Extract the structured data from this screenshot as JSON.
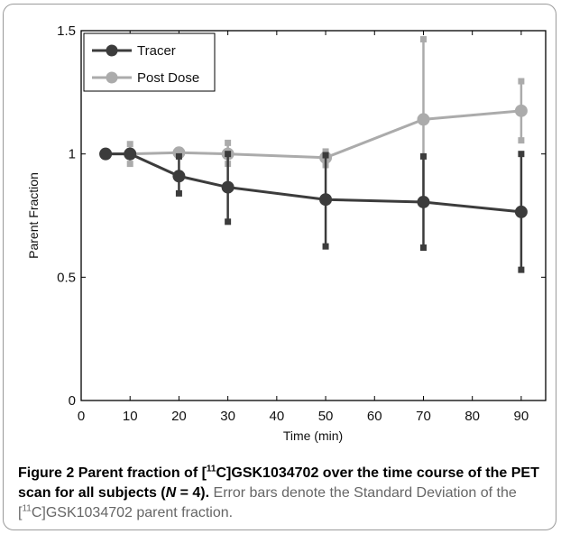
{
  "chart_data": {
    "type": "line",
    "xlabel": "Time (min)",
    "ylabel": "Parent Fraction",
    "xlim": [
      0,
      95
    ],
    "ylim": [
      0,
      1.5
    ],
    "xticks": [
      "0",
      "10",
      "20",
      "30",
      "40",
      "50",
      "60",
      "70",
      "80",
      "90"
    ],
    "yticks": [
      "0",
      "0.5",
      "1",
      "1.5"
    ],
    "legend_position": "top-left",
    "series": [
      {
        "name": "Tracer",
        "color": "#3c3c3c",
        "x": [
          5,
          10,
          20,
          30,
          50,
          70,
          90
        ],
        "y": [
          1.0,
          1.0,
          0.91,
          0.865,
          0.815,
          0.805,
          0.765
        ],
        "err_low": [
          1.0,
          0.99,
          0.84,
          0.725,
          0.625,
          0.62,
          0.53
        ],
        "err_high": [
          1.0,
          1.01,
          0.99,
          1.0,
          0.995,
          0.99,
          1.0
        ]
      },
      {
        "name": "Post Dose",
        "color": "#ababab",
        "x": [
          5,
          10,
          20,
          30,
          50,
          70,
          90
        ],
        "y": [
          1.0,
          1.0,
          1.005,
          1.0,
          0.985,
          1.14,
          1.175
        ],
        "err_low": [
          1.0,
          0.96,
          1.0,
          0.96,
          0.955,
          0.815,
          1.055
        ],
        "err_high": [
          1.0,
          1.04,
          1.01,
          1.045,
          1.01,
          1.465,
          1.295
        ]
      }
    ]
  },
  "caption": {
    "figure_label": "Figure 2",
    "bold_part1": "Parent fraction of [",
    "bold_sup": "11",
    "bold_part2": "C]GSK1034702 over the time course of the PET scan for all subjects (",
    "bold_n": "N",
    "bold_part3": " = 4).",
    "normal_part1": "Error bars denote the Standard Deviation of the [",
    "normal_sup": "11",
    "normal_part2": "C]GSK1034702 parent fraction."
  }
}
